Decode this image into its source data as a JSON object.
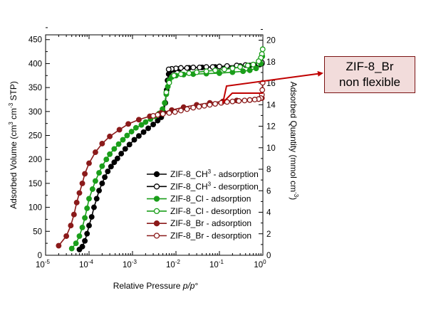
{
  "chart_data": {
    "type": "scatter",
    "xlabel": "Relative Pressure p/p°",
    "xlabel_parts": [
      "Relative Pressure ",
      "p/p",
      "°"
    ],
    "ylabel_left": "Adsorbed Volume (cm³ cm⁻³ STP)",
    "ylabel_left_parts": [
      "Adsorbed Volume (cm",
      "3",
      " cm",
      "-3",
      " STP)"
    ],
    "ylabel_right": "Adsorbed Quantity (mmol cm⁻³)",
    "ylabel_right_parts": [
      "Adsorbed Quantity (mmol cm",
      "-3",
      ")"
    ],
    "x_scale": "log",
    "xlim": [
      1e-05,
      1
    ],
    "ylim_left": [
      0,
      460
    ],
    "ylim_right": [
      0,
      20.5
    ],
    "x_ticks": [
      {
        "v": 1e-05,
        "base": "10",
        "exp": "-5"
      },
      {
        "v": 0.0001,
        "base": "10",
        "exp": "-4"
      },
      {
        "v": 0.001,
        "base": "10",
        "exp": "-3"
      },
      {
        "v": 0.01,
        "base": "10",
        "exp": "-2"
      },
      {
        "v": 0.1,
        "base": "10",
        "exp": "-1"
      },
      {
        "v": 1,
        "base": "10",
        "exp": "0"
      }
    ],
    "y_ticks_left": [
      0,
      50,
      100,
      150,
      200,
      250,
      300,
      350,
      400,
      450
    ],
    "y_ticks_right": [
      0,
      2,
      4,
      6,
      8,
      10,
      12,
      14,
      16,
      18,
      20
    ],
    "grid": false,
    "legend_position": "bottom-right",
    "series": [
      {
        "name": "ZIF-8_CH3 - adsorption",
        "legend_parts": [
          "ZIF-8_CH",
          "3",
          " - adsorption"
        ],
        "color": "#000000",
        "filled": true,
        "x": [
          6e-05,
          7e-05,
          8e-05,
          9e-05,
          0.0001,
          0.000115,
          0.00013,
          0.00015,
          0.00017,
          0.0002,
          0.00023,
          0.00027,
          0.00032,
          0.00038,
          0.00045,
          0.00055,
          0.00068,
          0.00085,
          0.0011,
          0.0014,
          0.0018,
          0.0023,
          0.003,
          0.0038,
          0.0046,
          0.0052,
          0.0057,
          0.0061,
          0.0064,
          0.0068,
          0.0075,
          0.009,
          0.012,
          0.02,
          0.04,
          0.08,
          0.15,
          0.3,
          0.5,
          0.7,
          0.85,
          0.95
        ],
        "y": [
          12,
          18,
          30,
          45,
          62,
          80,
          100,
          118,
          135,
          150,
          163,
          175,
          185,
          194,
          202,
          212,
          222,
          231,
          241,
          249,
          257,
          265,
          273,
          281,
          288,
          298,
          318,
          345,
          365,
          378,
          385,
          387,
          389,
          391,
          392,
          393,
          394,
          395,
          396,
          397,
          398,
          400
        ]
      },
      {
        "name": "ZIF-8_CH3 - desorption",
        "legend_parts": [
          "ZIF-8_CH",
          "3",
          " - desorption"
        ],
        "color": "#000000",
        "filled": false,
        "x": [
          0.95,
          0.8,
          0.6,
          0.4,
          0.25,
          0.15,
          0.1,
          0.07,
          0.05,
          0.035,
          0.025,
          0.018,
          0.013,
          0.01,
          0.008,
          0.0068
        ],
        "y": [
          402,
          400,
          398,
          397,
          396,
          395,
          394,
          393,
          393,
          392,
          392,
          391,
          391,
          390,
          389,
          388
        ]
      },
      {
        "name": "ZIF-8_Cl - adsorption",
        "legend_parts": [
          "ZIF-8_Cl - adsorption"
        ],
        "color": "#1a9e1a",
        "filled": true,
        "x": [
          4e-05,
          5e-05,
          6e-05,
          7e-05,
          8e-05,
          9e-05,
          0.0001,
          0.00012,
          0.00014,
          0.00017,
          0.0002,
          0.00025,
          0.0003,
          0.00038,
          0.00048,
          0.0006,
          0.00075,
          0.00095,
          0.0012,
          0.0016,
          0.002,
          0.0026,
          0.0033,
          0.0041,
          0.0049,
          0.0055,
          0.006,
          0.0065,
          0.007,
          0.008,
          0.01,
          0.015,
          0.025,
          0.05,
          0.1,
          0.2,
          0.35,
          0.5,
          0.7,
          0.9,
          0.97
        ],
        "y": [
          14,
          25,
          40,
          58,
          78,
          98,
          118,
          138,
          155,
          172,
          186,
          200,
          211,
          222,
          232,
          241,
          250,
          258,
          266,
          272,
          278,
          284,
          290,
          296,
          305,
          318,
          336,
          352,
          365,
          372,
          375,
          377,
          378,
          379,
          380,
          382,
          384,
          386,
          390,
          400,
          415
        ]
      },
      {
        "name": "ZIF-8_Cl - desorption",
        "legend_parts": [
          "ZIF-8_Cl - desorption"
        ],
        "color": "#1a9e1a",
        "filled": false,
        "x": [
          0.99,
          0.95,
          0.9,
          0.8,
          0.6,
          0.45,
          0.3,
          0.2,
          0.13,
          0.08,
          0.05,
          0.03,
          0.02,
          0.013,
          0.009,
          0.007,
          0.006
        ],
        "y": [
          430,
          420,
          412,
          405,
          398,
          396,
          393,
          390,
          388,
          386,
          384,
          382,
          380,
          378,
          375,
          360,
          340
        ]
      },
      {
        "name": "ZIF-8_Br - adsorption",
        "legend_parts": [
          "ZIF-8_Br - adsorption"
        ],
        "color": "#8b1a1a",
        "filled": true,
        "x": [
          2e-05,
          3e-05,
          3.8e-05,
          4.5e-05,
          5.2e-05,
          6e-05,
          7e-05,
          8e-05,
          0.0001,
          0.00014,
          0.0002,
          0.0003,
          0.0005,
          0.0008,
          0.0014,
          0.0025,
          0.0045,
          0.008,
          0.015,
          0.03,
          0.06,
          0.12,
          0.25,
          0.5,
          0.8,
          0.95
        ],
        "y": [
          20,
          40,
          62,
          85,
          110,
          130,
          150,
          170,
          192,
          215,
          233,
          248,
          262,
          274,
          283,
          290,
          297,
          303,
          309,
          314,
          318,
          321,
          323,
          324,
          326,
          328
        ]
      },
      {
        "name": "ZIF-8_Br - desorption",
        "legend_parts": [
          "ZIF-8_Br - desorption"
        ],
        "color": "#8b1a1a",
        "filled": false,
        "x": [
          0.99,
          0.97,
          0.95,
          0.9,
          0.8,
          0.65,
          0.5,
          0.38,
          0.28,
          0.2,
          0.15,
          0.11,
          0.08,
          0.06,
          0.045,
          0.034,
          0.025,
          0.018,
          0.013,
          0.0095,
          0.007,
          0.005,
          0.0038,
          0.003
        ],
        "y": [
          360,
          345,
          335,
          328,
          326,
          325,
          324,
          323,
          322,
          321,
          320,
          318,
          316,
          314,
          312,
          310,
          308,
          305,
          302,
          299,
          297,
          295,
          293,
          291
        ]
      }
    ],
    "annotation": {
      "lines": [
        "ZIF-8_Br",
        "non flexible"
      ]
    }
  }
}
